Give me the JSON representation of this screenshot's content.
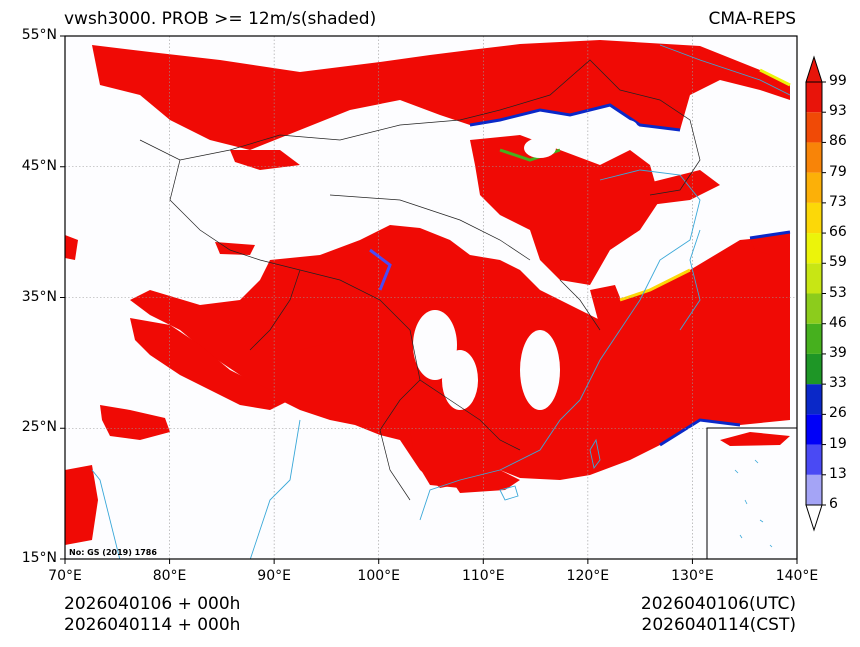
{
  "header": {
    "title": "vwsh3000. PROB >= 12m/s(shaded)",
    "model": "CMA-REPS"
  },
  "map": {
    "lat_labels": [
      "55°N",
      "45°N",
      "35°N",
      "25°N",
      "15°N"
    ],
    "lat_values": [
      55,
      45,
      35,
      25,
      15
    ],
    "lon_labels": [
      "70°E",
      "80°E",
      "90°E",
      "100°E",
      "110°E",
      "120°E",
      "130°E",
      "140°E"
    ],
    "lon_values": [
      70,
      80,
      90,
      100,
      110,
      120,
      130,
      140
    ],
    "lon_range": [
      70,
      140
    ],
    "lat_range": [
      15,
      55
    ],
    "approval_number": "No: GS (2019) 1786",
    "shading_color": "#f00a05",
    "coast_color": "#3aa8d8",
    "border_color": "#000000"
  },
  "colorbar": {
    "labels": [
      "6",
      "13",
      "19",
      "26",
      "33",
      "39",
      "46",
      "53",
      "59",
      "66",
      "73",
      "79",
      "86",
      "93",
      "99"
    ],
    "colors": [
      "#ffffff",
      "#a4a4f6",
      "#4a4af4",
      "#0000f8",
      "#0a28c8",
      "#1e9626",
      "#46b01e",
      "#8ccc1c",
      "#c8e614",
      "#ecf40a",
      "#fcd808",
      "#fcb008",
      "#f88408",
      "#f04a06",
      "#e8140a"
    ]
  },
  "footer": {
    "init_utc": "2026040106  +  000h",
    "init_cst": "2026040114  +  000h",
    "valid_utc": "2026040106(UTC)",
    "valid_cst": "2026040114(CST)"
  }
}
